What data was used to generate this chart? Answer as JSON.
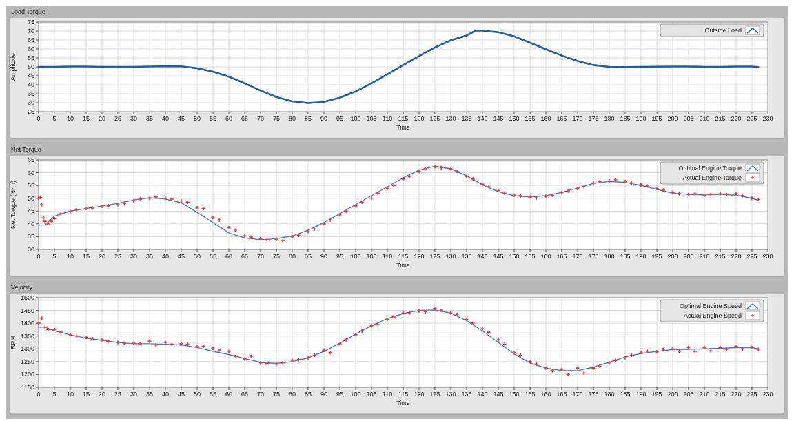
{
  "chart_data": [
    {
      "type": "line",
      "title": "Load Torque",
      "xlabel": "Time",
      "ylabel": "Amplitude",
      "xlim": [
        0,
        230
      ],
      "xticks": [
        0,
        5,
        10,
        15,
        20,
        25,
        30,
        35,
        40,
        45,
        50,
        55,
        60,
        65,
        70,
        75,
        80,
        85,
        90,
        95,
        100,
        105,
        110,
        115,
        120,
        125,
        130,
        135,
        140,
        145,
        150,
        155,
        160,
        165,
        170,
        175,
        180,
        185,
        190,
        195,
        200,
        205,
        210,
        215,
        220,
        225,
        230
      ],
      "ylim": [
        25,
        75
      ],
      "yticks": [
        25,
        30,
        35,
        40,
        45,
        50,
        55,
        60,
        65,
        70,
        75
      ],
      "grid": true,
      "legend": "top right",
      "line_style": "solid",
      "series": [
        {
          "name": "Outside Load",
          "color": "#1f5fa0",
          "x": [
            0,
            5,
            10,
            15,
            20,
            25,
            30,
            35,
            40,
            45,
            50,
            55,
            60,
            65,
            70,
            75,
            80,
            85,
            90,
            95,
            100,
            105,
            110,
            115,
            120,
            125,
            130,
            135,
            138,
            140,
            145,
            150,
            155,
            160,
            165,
            170,
            175,
            180,
            185,
            190,
            195,
            200,
            205,
            210,
            215,
            220,
            225,
            227
          ],
          "values": [
            50,
            50,
            50.2,
            50.2,
            50,
            50,
            50,
            50.2,
            50.4,
            50.3,
            49.2,
            47.3,
            44.5,
            40.8,
            36.8,
            33.2,
            30.8,
            29.8,
            30.5,
            32.8,
            36.3,
            40.8,
            45.8,
            51,
            56,
            60.8,
            64.8,
            67.5,
            70.3,
            70.2,
            69.3,
            67,
            63.5,
            59.8,
            56.3,
            53.3,
            51,
            50,
            49.9,
            50,
            50.1,
            50.2,
            50.2,
            50,
            50,
            50.2,
            50.2,
            49.9
          ]
        }
      ]
    },
    {
      "type": "line",
      "title": "Net Torque",
      "xlabel": "Time",
      "ylabel": "Net Torque (N*m)",
      "xlim": [
        0,
        230
      ],
      "xticks": [
        0,
        5,
        10,
        15,
        20,
        25,
        30,
        35,
        40,
        45,
        50,
        55,
        60,
        65,
        70,
        75,
        80,
        85,
        90,
        95,
        100,
        105,
        110,
        115,
        120,
        125,
        130,
        135,
        140,
        145,
        150,
        155,
        160,
        165,
        170,
        175,
        180,
        185,
        190,
        195,
        200,
        205,
        210,
        215,
        220,
        225,
        230
      ],
      "ylim": [
        30,
        65
      ],
      "yticks": [
        30,
        35,
        40,
        45,
        50,
        55,
        60,
        65
      ],
      "grid": true,
      "legend": "top right",
      "line_style": "solid",
      "series": [
        {
          "name": "Optimal Engine Torque",
          "color": "#3d7fc0",
          "x": [
            0,
            2,
            5,
            10,
            15,
            20,
            25,
            30,
            35,
            40,
            45,
            50,
            55,
            60,
            65,
            70,
            75,
            80,
            85,
            90,
            95,
            100,
            105,
            110,
            115,
            120,
            125,
            130,
            135,
            140,
            145,
            150,
            155,
            160,
            165,
            170,
            175,
            180,
            185,
            190,
            195,
            200,
            205,
            210,
            215,
            220,
            225,
            227
          ],
          "values": [
            39.5,
            39.6,
            43,
            45,
            46,
            47,
            48,
            49.3,
            50.2,
            49.7,
            48.2,
            44.5,
            40.5,
            36.5,
            34.5,
            33.8,
            34.2,
            35.3,
            37.5,
            40.5,
            44,
            47.5,
            51,
            54.5,
            58,
            61,
            62.5,
            61.5,
            58.8,
            55.3,
            52.5,
            51,
            50.5,
            51,
            52.3,
            54,
            55.8,
            56.6,
            56.2,
            55,
            53.5,
            52,
            51.5,
            51.3,
            51.5,
            51.2,
            50,
            49.2
          ]
        },
        {
          "name": "Actual Engine Torque",
          "type": "scatter",
          "marker": "cross",
          "color": "#ff3333",
          "x": [
            0,
            0.5,
            1,
            1.5,
            2,
            3,
            4,
            5,
            7,
            10,
            12,
            15,
            17,
            20,
            22,
            25,
            27,
            30,
            32,
            35,
            37,
            40,
            42,
            45,
            47,
            50,
            52,
            55,
            57,
            60,
            62,
            65,
            67,
            70,
            72,
            75,
            77,
            80,
            82,
            85,
            87,
            90,
            92,
            95,
            97,
            100,
            102,
            105,
            107,
            110,
            112,
            115,
            117,
            120,
            122,
            125,
            127,
            130,
            132,
            135,
            137,
            140,
            142,
            145,
            147,
            150,
            152,
            155,
            157,
            160,
            162,
            165,
            167,
            170,
            172,
            175,
            177,
            180,
            182,
            185,
            187,
            190,
            192,
            195,
            197,
            200,
            202,
            205,
            207,
            210,
            212,
            215,
            217,
            220,
            222,
            225,
            227
          ],
          "values": [
            50,
            50.3,
            47.5,
            42.3,
            41,
            40,
            41,
            42,
            44,
            44.8,
            45.5,
            46,
            46.2,
            46.8,
            47,
            47.5,
            48,
            49,
            49.7,
            50,
            50.5,
            50,
            49.7,
            49,
            48.5,
            46.2,
            46,
            42.5,
            41.5,
            38.5,
            37.5,
            35.3,
            34.8,
            34.2,
            33.8,
            34,
            33.5,
            35,
            35.5,
            37,
            38,
            40,
            41.5,
            43.5,
            45,
            47,
            48.5,
            50,
            52,
            53.8,
            55,
            57.5,
            58.5,
            60.5,
            61.5,
            62.3,
            62,
            61.5,
            60.5,
            58.5,
            57.5,
            55.5,
            54.5,
            53,
            52,
            51.2,
            51,
            50.5,
            50.2,
            50.8,
            51.2,
            52.2,
            52.8,
            53.8,
            54.5,
            56,
            56.5,
            56.8,
            57.2,
            56.5,
            56,
            55.2,
            54.8,
            53.8,
            53.2,
            52.3,
            51.8,
            51.5,
            51.8,
            51.2,
            51.5,
            51.8,
            51.5,
            51.8,
            51,
            50,
            49.5
          ]
        }
      ]
    },
    {
      "type": "line",
      "title": "Velocity",
      "xlabel": "Time",
      "ylabel": "RPM",
      "xlim": [
        0,
        230
      ],
      "xticks": [
        0,
        5,
        10,
        15,
        20,
        25,
        30,
        35,
        40,
        45,
        50,
        55,
        60,
        65,
        70,
        75,
        80,
        85,
        90,
        95,
        100,
        105,
        110,
        115,
        120,
        125,
        130,
        135,
        140,
        145,
        150,
        155,
        160,
        165,
        170,
        175,
        180,
        185,
        190,
        195,
        200,
        205,
        210,
        215,
        220,
        225,
        230
      ],
      "ylim": [
        1150,
        1500
      ],
      "yticks": [
        1150,
        1200,
        1250,
        1300,
        1350,
        1400,
        1450,
        1500
      ],
      "grid": true,
      "legend": "top right",
      "line_style": "solid",
      "series": [
        {
          "name": "Optimal Engine Speed",
          "color": "#3d7fc0",
          "x": [
            0,
            2,
            5,
            10,
            15,
            20,
            25,
            30,
            35,
            40,
            45,
            50,
            55,
            60,
            65,
            70,
            75,
            80,
            85,
            90,
            95,
            100,
            105,
            110,
            115,
            120,
            125,
            130,
            135,
            140,
            145,
            150,
            155,
            160,
            165,
            170,
            175,
            180,
            185,
            190,
            195,
            200,
            205,
            210,
            215,
            220,
            225,
            227
          ],
          "values": [
            1385,
            1385,
            1370,
            1355,
            1342,
            1333,
            1325,
            1320,
            1320,
            1318,
            1315,
            1305,
            1290,
            1278,
            1262,
            1247,
            1243,
            1250,
            1265,
            1290,
            1322,
            1358,
            1390,
            1418,
            1438,
            1450,
            1452,
            1440,
            1410,
            1370,
            1325,
            1280,
            1245,
            1225,
            1215,
            1215,
            1228,
            1248,
            1268,
            1282,
            1290,
            1297,
            1298,
            1300,
            1302,
            1305,
            1305,
            1300
          ]
        },
        {
          "name": "Actual Engine Speed",
          "type": "scatter",
          "marker": "cross",
          "color": "#ff3333",
          "x": [
            0,
            1,
            2,
            3,
            5,
            7,
            10,
            12,
            15,
            17,
            20,
            22,
            25,
            27,
            30,
            32,
            35,
            37,
            40,
            42,
            45,
            47,
            50,
            52,
            55,
            57,
            60,
            62,
            65,
            67,
            70,
            72,
            75,
            77,
            80,
            82,
            85,
            87,
            90,
            92,
            95,
            97,
            100,
            102,
            105,
            107,
            110,
            112,
            115,
            117,
            120,
            122,
            125,
            127,
            130,
            132,
            135,
            137,
            140,
            142,
            145,
            147,
            150,
            152,
            155,
            157,
            160,
            162,
            165,
            167,
            170,
            172,
            175,
            177,
            180,
            182,
            185,
            187,
            190,
            192,
            195,
            197,
            200,
            202,
            205,
            207,
            210,
            212,
            215,
            217,
            220,
            222,
            225,
            227
          ],
          "values": [
            1400,
            1420,
            1385,
            1375,
            1375,
            1365,
            1355,
            1350,
            1345,
            1340,
            1335,
            1330,
            1325,
            1322,
            1322,
            1320,
            1330,
            1315,
            1325,
            1318,
            1320,
            1318,
            1310,
            1310,
            1302,
            1295,
            1290,
            1270,
            1260,
            1270,
            1245,
            1242,
            1240,
            1245,
            1255,
            1258,
            1265,
            1275,
            1295,
            1285,
            1320,
            1335,
            1355,
            1370,
            1390,
            1395,
            1415,
            1425,
            1440,
            1440,
            1448,
            1445,
            1458,
            1450,
            1440,
            1435,
            1415,
            1400,
            1378,
            1365,
            1335,
            1318,
            1285,
            1275,
            1250,
            1240,
            1225,
            1215,
            1220,
            1200,
            1225,
            1205,
            1225,
            1232,
            1245,
            1255,
            1265,
            1275,
            1285,
            1290,
            1288,
            1298,
            1300,
            1290,
            1305,
            1290,
            1305,
            1292,
            1305,
            1298,
            1310,
            1300,
            1305,
            1298
          ]
        }
      ]
    }
  ]
}
